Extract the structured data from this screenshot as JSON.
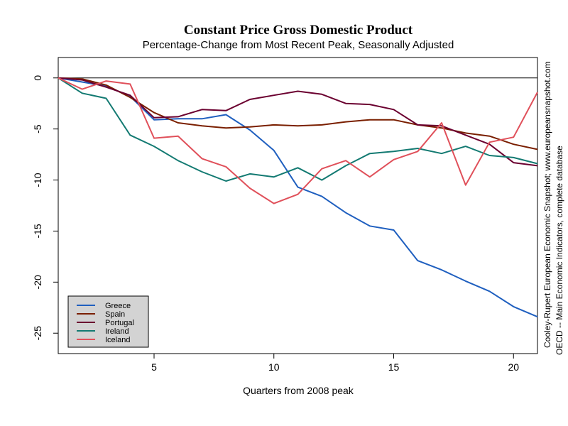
{
  "chart_data": {
    "type": "line",
    "title": "Constant Price Gross Domestic Product",
    "subtitle": "Percentage-Change from Most Recent Peak, Seasonally Adjusted",
    "xlabel": "Quarters from 2008 peak",
    "ylabel": "",
    "xlim": [
      1,
      21
    ],
    "ylim": [
      -27,
      2
    ],
    "x_ticks": [
      5,
      10,
      15,
      20
    ],
    "y_ticks": [
      0,
      -5,
      -10,
      -15,
      -20,
      -25
    ],
    "grid": false,
    "zero_line": true,
    "legend_position": "bottom-left",
    "x": [
      1,
      2,
      3,
      4,
      5,
      6,
      7,
      8,
      9,
      10,
      11,
      12,
      13,
      14,
      15,
      16,
      17,
      18,
      19,
      20,
      21
    ],
    "series": [
      {
        "name": "Greece",
        "color": "#1f5fbf",
        "values": [
          0,
          -0.4,
          -0.8,
          -1.8,
          -4.1,
          -4.0,
          -4.0,
          -3.6,
          -5.1,
          -7.1,
          -10.7,
          -11.6,
          -13.2,
          -14.5,
          -14.9,
          -17.9,
          -18.8,
          -19.9,
          -20.9,
          -22.4,
          -23.4
        ]
      },
      {
        "name": "Spain",
        "color": "#7a1f00",
        "values": [
          0,
          -0.1,
          -0.7,
          -1.9,
          -3.4,
          -4.4,
          -4.7,
          -4.9,
          -4.8,
          -4.6,
          -4.7,
          -4.6,
          -4.3,
          -4.1,
          -4.1,
          -4.6,
          -4.9,
          -5.4,
          -5.7,
          -6.5,
          -7.0
        ]
      },
      {
        "name": "Portugal",
        "color": "#6b0030",
        "values": [
          0,
          -0.2,
          -0.9,
          -1.7,
          -3.9,
          -3.8,
          -3.1,
          -3.2,
          -2.1,
          -1.7,
          -1.3,
          -1.6,
          -2.5,
          -2.6,
          -3.1,
          -4.6,
          -4.7,
          -5.6,
          -6.5,
          -8.3,
          -8.6
        ]
      },
      {
        "name": "Ireland",
        "color": "#137a72",
        "values": [
          0,
          -1.5,
          -2.0,
          -5.6,
          -6.7,
          -8.1,
          -9.2,
          -10.1,
          -9.4,
          -9.7,
          -8.8,
          -10.0,
          -8.6,
          -7.4,
          -7.2,
          -6.9,
          -7.4,
          -6.7,
          -7.6,
          -7.8,
          -8.4
        ]
      },
      {
        "name": "Iceland",
        "color": "#e0505a",
        "values": [
          0,
          -1.1,
          -0.3,
          -0.6,
          -5.9,
          -5.7,
          -7.9,
          -8.7,
          -10.8,
          -12.3,
          -11.4,
          -8.9,
          -8.1,
          -9.7,
          -8.0,
          -7.2,
          -4.4,
          -10.5,
          -6.3,
          -5.8,
          -1.4
        ]
      }
    ],
    "side_notes": [
      "Cooley-Rupert European Economic Snapshot; www.europeansnapshot.com",
      "OECD -- Main Economic Indicators, complete database"
    ]
  }
}
